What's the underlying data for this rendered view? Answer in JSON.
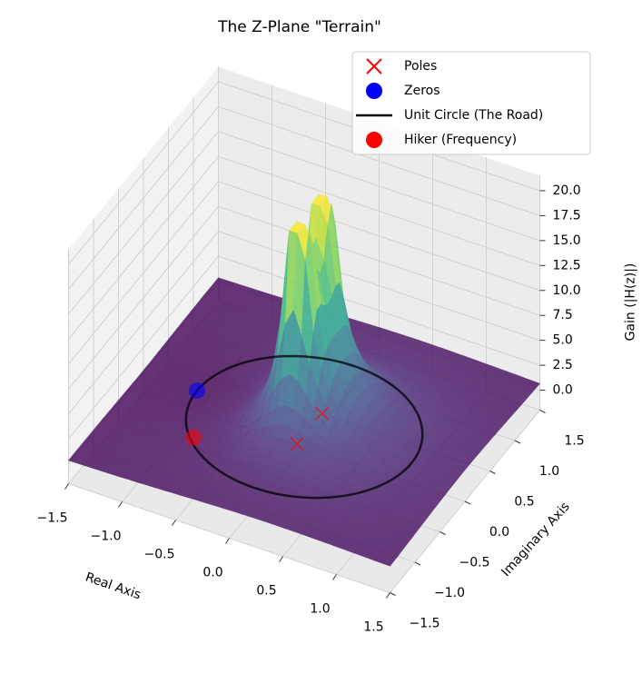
{
  "chart_data": {
    "type": "surface3d",
    "title": "The Z-Plane \"Terrain\"",
    "xlabel": "Real Axis",
    "ylabel": "Imaginary Axis",
    "zlabel": "Gain (|H(z)|)",
    "xlim": [
      -1.5,
      1.5
    ],
    "ylim": [
      -1.5,
      1.5
    ],
    "zlim": [
      -2,
      21.5
    ],
    "xticks": [
      {
        "value": -1.5,
        "label": "−1.5"
      },
      {
        "value": -1,
        "label": "−1.0"
      },
      {
        "value": -0.5,
        "label": "−0.5"
      },
      {
        "value": 0,
        "label": "0.0"
      },
      0.5,
      {
        "value": 1,
        "label": "1.0"
      },
      1.5
    ],
    "yticks": [
      {
        "value": -1.5,
        "label": "−1.5"
      },
      {
        "value": -1,
        "label": "−1.0"
      },
      {
        "value": -0.5,
        "label": "−0.5"
      },
      {
        "value": 0,
        "label": "0.0"
      },
      0.5,
      {
        "value": 1,
        "label": "1.0"
      },
      1.5
    ],
    "zticks": [
      {
        "value": 0,
        "label": "0.0"
      },
      2.5,
      {
        "value": 5,
        "label": "5.0"
      },
      7.5,
      {
        "value": 10,
        "label": "10.0"
      },
      12.5,
      {
        "value": 15,
        "label": "15.0"
      },
      17.5,
      {
        "value": 20,
        "label": "20.0"
      }
    ],
    "colormap": "viridis",
    "alpha": 0.8,
    "grid": true,
    "legend": "upper right",
    "poles": {
      "name": "Poles",
      "color": "#ff0000",
      "points": [
        {
          "re": 0.05,
          "im": 0.25
        },
        {
          "re": 0.05,
          "im": -0.25
        }
      ]
    },
    "zeros": {
      "name": "Zeros",
      "color": "#0000ff",
      "points": [
        {
          "re": -1,
          "im": 0
        }
      ]
    },
    "unit_circle": {
      "name": "Unit Circle (The Road)",
      "color": "#000000"
    },
    "hiker": {
      "name": "Hiker (Frequency)",
      "color": "#ff0000",
      "point": {
        "re": -0.7,
        "im": -0.71
      }
    }
  }
}
